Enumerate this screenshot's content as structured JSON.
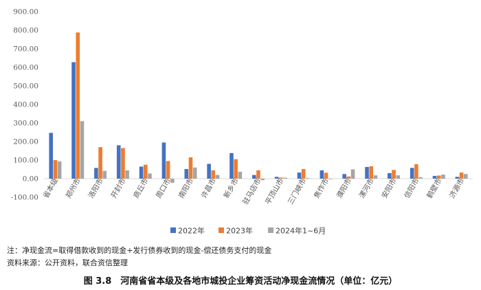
{
  "notes": {
    "line1": "注：净现金流=取得借款收到的现金+发行债券收到的现金-偿还债务支付的现金",
    "line2": "资料来源：公开资料，联合资信整理"
  },
  "caption": "图 3.8　河南省省本级及各地市城投企业筹资活动净现金流情况（单位：亿元）",
  "chart_data": {
    "type": "bar",
    "title": "",
    "xlabel": "",
    "ylabel": "",
    "ylim": [
      -100,
      900
    ],
    "yticks": [
      "-100.00",
      "0.00",
      "100.00",
      "200.00",
      "300.00",
      "400.00",
      "500.00",
      "600.00",
      "700.00",
      "800.00",
      "900.00"
    ],
    "grid": false,
    "legend_position": "bottom",
    "categories": [
      "省本级",
      "郑州市",
      "洛阳市",
      "开封市",
      "商丘市",
      "周口市",
      "南阳市",
      "许昌市",
      "新乡市",
      "驻马店市",
      "平顶山市",
      "三门峡市",
      "焦作市",
      "濮阳市",
      "漯河市",
      "安阳市",
      "信阳市",
      "鹤壁市",
      "济源市"
    ],
    "series": [
      {
        "name": "2022年",
        "color": "#4472C4",
        "values": [
          247,
          628,
          58,
          180,
          65,
          195,
          52,
          80,
          138,
          20,
          10,
          33,
          45,
          25,
          63,
          30,
          58,
          15,
          10
        ]
      },
      {
        "name": "2023年",
        "color": "#ED7D31",
        "values": [
          100,
          788,
          170,
          165,
          75,
          95,
          115,
          45,
          105,
          45,
          6,
          52,
          32,
          12,
          67,
          47,
          78,
          17,
          33
        ]
      },
      {
        "name": "2024年1~6月",
        "color": "#A5A5A5",
        "values": [
          93,
          310,
          42,
          45,
          28,
          -22,
          60,
          20,
          37,
          -8,
          5,
          3,
          -3,
          50,
          18,
          18,
          8,
          22,
          25
        ]
      }
    ]
  }
}
